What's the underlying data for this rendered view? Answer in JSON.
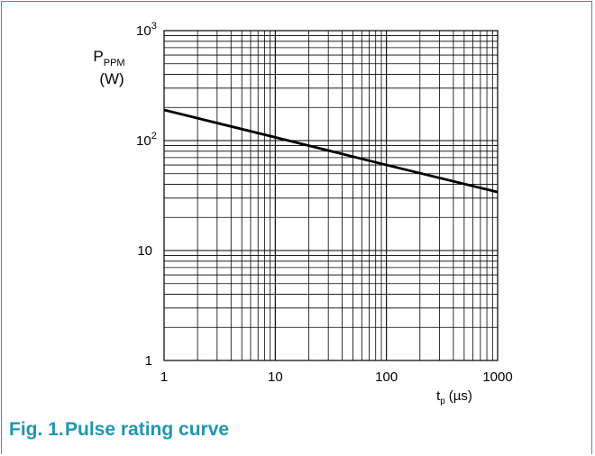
{
  "figure": {
    "number": "Fig. 1.",
    "title": "Pulse rating curve",
    "accent_color": "#1f96b4"
  },
  "chart_data": {
    "type": "line",
    "title": "",
    "xscale": "log",
    "yscale": "log",
    "xlim": [
      1,
      1000
    ],
    "ylim": [
      1,
      1000
    ],
    "grid": true,
    "x_ticks": [
      {
        "value": 1,
        "label": "1"
      },
      {
        "value": 10,
        "label": "10"
      },
      {
        "value": 100,
        "label": "100"
      },
      {
        "value": 1000,
        "label": "1000"
      }
    ],
    "y_ticks": [
      {
        "value": 1,
        "base": "1",
        "exp": ""
      },
      {
        "value": 10,
        "base": "10",
        "exp": ""
      },
      {
        "value": 100,
        "base": "10",
        "exp": "2"
      },
      {
        "value": 1000,
        "base": "10",
        "exp": "3"
      }
    ],
    "ylabel": {
      "main": "P",
      "sub": "PPM",
      "unit": "(W)"
    },
    "xlabel": {
      "main": "t",
      "sub": "p",
      "unit": "(µs)"
    },
    "series": [
      {
        "x": [
          1,
          10,
          100,
          1000
        ],
        "y": [
          190,
          107,
          60,
          34
        ]
      }
    ]
  }
}
